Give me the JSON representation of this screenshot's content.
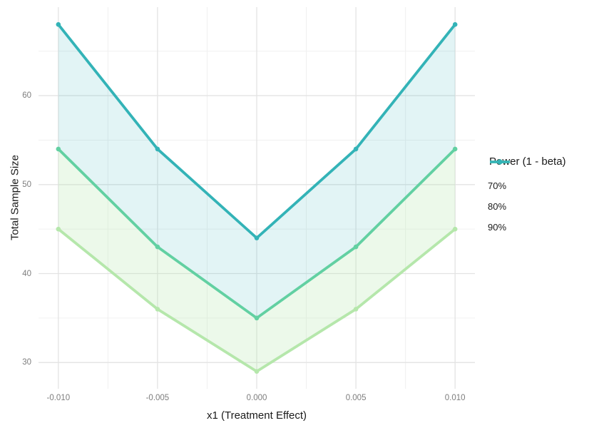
{
  "chart_data": {
    "type": "line",
    "title": "",
    "xlabel": "x1 (Treatment Effect)",
    "ylabel": "Total Sample Size",
    "x": [
      -0.01,
      -0.005,
      0.0,
      0.005,
      0.01
    ],
    "series": [
      {
        "name": "70%",
        "values": [
          45,
          36,
          29,
          36,
          45
        ],
        "color": "#b5e7ab"
      },
      {
        "name": "80%",
        "values": [
          54,
          43,
          35,
          43,
          54
        ],
        "color": "#62d0a2"
      },
      {
        "name": "90%",
        "values": [
          68,
          54,
          44,
          54,
          68
        ],
        "color": "#33b3b7"
      }
    ],
    "ribbons": [
      {
        "lower_series": 0,
        "upper_series": 1,
        "fill": "#b5e7ab",
        "opacity": 0.25
      },
      {
        "lower_series": 1,
        "upper_series": 2,
        "fill": "#33b3b7",
        "opacity": 0.14
      }
    ],
    "xlim": [
      -0.011,
      0.011
    ],
    "ylim": [
      27.05,
      69.95
    ],
    "x_ticks": {
      "values": [
        -0.01,
        -0.005,
        0.0,
        0.005,
        0.01
      ],
      "labels": [
        "-0.010",
        "-0.005",
        "0.000",
        "0.005",
        "0.010"
      ]
    },
    "y_ticks": {
      "values": [
        30,
        40,
        50,
        60
      ],
      "labels": [
        "30",
        "40",
        "50",
        "60"
      ]
    },
    "x_minor": [
      -0.0075,
      -0.0025,
      0.0025,
      0.0075
    ],
    "y_minor": [
      35,
      45,
      55,
      65
    ],
    "grid": "on",
    "marker": "circle",
    "legend": {
      "title": "Power (1 - beta)",
      "position": "right",
      "items": [
        {
          "label": "70%"
        },
        {
          "label": "80%"
        },
        {
          "label": "90%"
        }
      ]
    },
    "colors": {
      "background": "#ffffff",
      "grid_major": "#e3e3e3",
      "grid_minor": "#f0f0f0",
      "tick_label": "#7d7d7d",
      "axis_title": "#1a1a1a",
      "legend_text": "#1a1a1a"
    }
  }
}
